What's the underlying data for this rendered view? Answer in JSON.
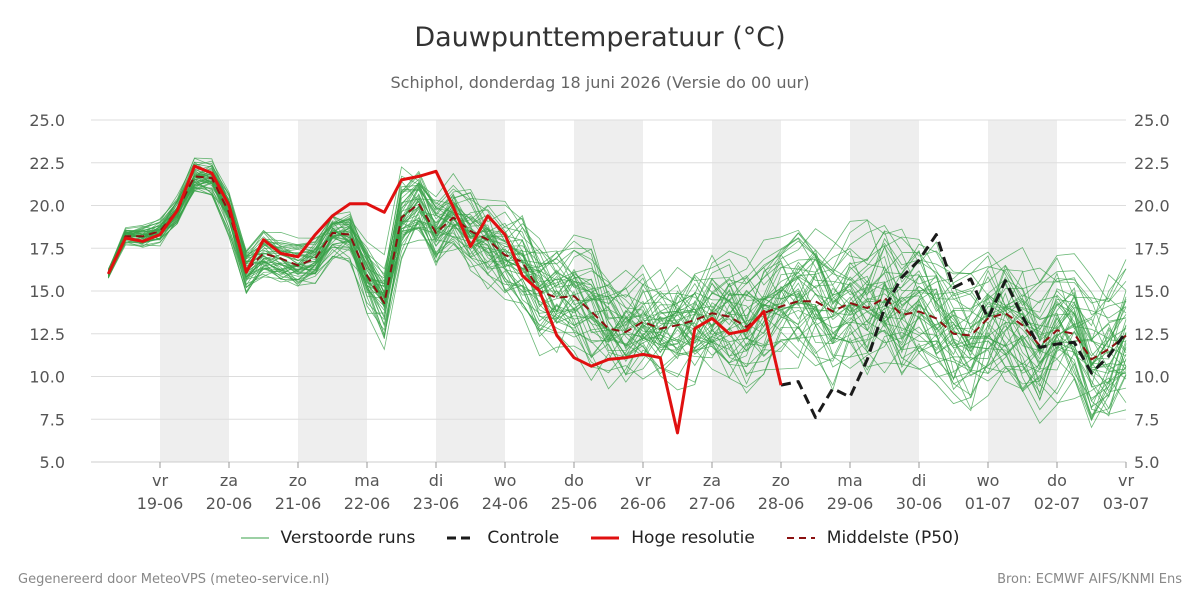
{
  "title": "Dauwpunttemperatuur (°C)",
  "subtitle": "Schiphol, donderdag 18 juni 2026 (Versie do 00 uur)",
  "footer_left": "Gegenereerd door MeteoVPS (meteo-service.nl)",
  "footer_right": "Bron: ECMWF AIFS/KNMI Ens",
  "legend": [
    {
      "label": "Verstoorde runs",
      "style": "thin",
      "color": "#3aa14a"
    },
    {
      "label": "Controle",
      "style": "dashed",
      "color": "#1a1a1a"
    },
    {
      "label": "Hoge resolutie",
      "style": "solid",
      "color": "#e01010"
    },
    {
      "label": "Middelste (P50)",
      "style": "dashed",
      "color": "#8b1010"
    }
  ],
  "chart_data": {
    "type": "line",
    "x_unit": "days after 18-06-2026 00:00",
    "xlim": [
      0,
      15
    ],
    "ylim": [
      5,
      25
    ],
    "y_ticks": [
      "5.0",
      "7.5",
      "10.0",
      "12.5",
      "15.0",
      "17.5",
      "20.0",
      "22.5",
      "25.0"
    ],
    "x_ticks": [
      {
        "day": "vr",
        "date": "19-06",
        "x": 1
      },
      {
        "day": "za",
        "date": "20-06",
        "x": 2
      },
      {
        "day": "zo",
        "date": "21-06",
        "x": 3
      },
      {
        "day": "ma",
        "date": "22-06",
        "x": 4
      },
      {
        "day": "di",
        "date": "23-06",
        "x": 5
      },
      {
        "day": "wo",
        "date": "24-06",
        "x": 6
      },
      {
        "day": "do",
        "date": "25-06",
        "x": 7
      },
      {
        "day": "vr",
        "date": "26-06",
        "x": 8
      },
      {
        "day": "za",
        "date": "27-06",
        "x": 9
      },
      {
        "day": "zo",
        "date": "28-06",
        "x": 10
      },
      {
        "day": "ma",
        "date": "29-06",
        "x": 11
      },
      {
        "day": "di",
        "date": "30-06",
        "x": 12
      },
      {
        "day": "wo",
        "date": "01-07",
        "x": 13
      },
      {
        "day": "do",
        "date": "02-07",
        "x": 14
      },
      {
        "day": "vr",
        "date": "03-07",
        "x": 15
      }
    ],
    "shaded_bands": [
      [
        1,
        2
      ],
      [
        3,
        4
      ],
      [
        5,
        6
      ],
      [
        7,
        8
      ],
      [
        9,
        10
      ],
      [
        11,
        12
      ],
      [
        13,
        14
      ]
    ],
    "colors": {
      "perturbed": "#3aa14a",
      "control": "#1a1a1a",
      "hres": "#e01010",
      "median": "#8b1010",
      "band": "#eeeeee",
      "grid": "#dddddd"
    },
    "series": [
      {
        "name": "Hoge resolutie",
        "points": [
          [
            0.25,
            16.0
          ],
          [
            0.5,
            18.1
          ],
          [
            0.75,
            17.9
          ],
          [
            1.0,
            18.3
          ],
          [
            1.25,
            19.7
          ],
          [
            1.5,
            22.3
          ],
          [
            1.75,
            21.9
          ],
          [
            2.0,
            20.0
          ],
          [
            2.25,
            16.1
          ],
          [
            2.5,
            18.0
          ],
          [
            2.75,
            17.2
          ],
          [
            3.0,
            17.0
          ],
          [
            3.25,
            18.3
          ],
          [
            3.5,
            19.4
          ],
          [
            3.75,
            20.1
          ],
          [
            4.0,
            20.1
          ],
          [
            4.25,
            19.6
          ],
          [
            4.5,
            21.5
          ],
          [
            4.75,
            21.7
          ],
          [
            5.0,
            22.0
          ],
          [
            5.25,
            19.9
          ],
          [
            5.5,
            17.6
          ],
          [
            5.75,
            19.4
          ],
          [
            6.0,
            18.3
          ],
          [
            6.25,
            15.9
          ],
          [
            6.5,
            15.0
          ],
          [
            6.75,
            12.4
          ],
          [
            7.0,
            11.1
          ],
          [
            7.25,
            10.6
          ],
          [
            7.5,
            11.0
          ],
          [
            7.75,
            11.1
          ],
          [
            8.0,
            11.3
          ],
          [
            8.25,
            11.1
          ],
          [
            8.5,
            6.7
          ],
          [
            8.75,
            12.8
          ],
          [
            9.0,
            13.4
          ],
          [
            9.25,
            12.5
          ],
          [
            9.5,
            12.7
          ],
          [
            9.75,
            13.8
          ],
          [
            10.0,
            9.5
          ]
        ]
      },
      {
        "name": "Controle",
        "points": [
          [
            10.0,
            9.5
          ],
          [
            10.25,
            9.7
          ],
          [
            10.5,
            7.6
          ],
          [
            10.75,
            9.3
          ],
          [
            11.0,
            8.8
          ],
          [
            11.25,
            11.0
          ],
          [
            11.5,
            14.0
          ],
          [
            11.75,
            15.8
          ],
          [
            12.0,
            16.8
          ],
          [
            12.25,
            18.3
          ],
          [
            12.5,
            15.2
          ],
          [
            12.75,
            15.7
          ],
          [
            13.0,
            13.4
          ],
          [
            13.25,
            15.6
          ],
          [
            13.5,
            13.5
          ],
          [
            13.75,
            11.7
          ],
          [
            14.0,
            11.9
          ],
          [
            14.25,
            12.0
          ],
          [
            14.5,
            10.2
          ],
          [
            14.75,
            11.2
          ],
          [
            15.0,
            12.6
          ]
        ]
      },
      {
        "name": "Middelste (P50)",
        "points": [
          [
            0.25,
            16.0
          ],
          [
            0.5,
            18.2
          ],
          [
            0.75,
            18.2
          ],
          [
            1.0,
            18.5
          ],
          [
            1.25,
            19.7
          ],
          [
            1.5,
            21.7
          ],
          [
            1.75,
            21.6
          ],
          [
            2.0,
            19.6
          ],
          [
            2.25,
            16.2
          ],
          [
            2.5,
            17.2
          ],
          [
            2.75,
            16.9
          ],
          [
            3.0,
            16.5
          ],
          [
            3.25,
            16.9
          ],
          [
            3.5,
            18.4
          ],
          [
            3.75,
            18.3
          ],
          [
            4.0,
            15.9
          ],
          [
            4.25,
            14.3
          ],
          [
            4.5,
            19.3
          ],
          [
            4.75,
            20.1
          ],
          [
            5.0,
            18.4
          ],
          [
            5.25,
            19.3
          ],
          [
            5.5,
            18.5
          ],
          [
            5.75,
            18.0
          ],
          [
            6.0,
            17.1
          ],
          [
            6.25,
            16.7
          ],
          [
            6.5,
            15.0
          ],
          [
            6.75,
            14.6
          ],
          [
            7.0,
            14.7
          ],
          [
            7.25,
            13.8
          ],
          [
            7.5,
            12.8
          ],
          [
            7.75,
            12.6
          ],
          [
            8.0,
            13.2
          ],
          [
            8.25,
            12.8
          ],
          [
            8.5,
            13.0
          ],
          [
            8.75,
            13.3
          ],
          [
            9.0,
            13.7
          ],
          [
            9.25,
            13.5
          ],
          [
            9.5,
            12.9
          ],
          [
            9.75,
            13.7
          ],
          [
            10.0,
            14.1
          ],
          [
            10.25,
            14.4
          ],
          [
            10.5,
            14.4
          ],
          [
            10.75,
            13.8
          ],
          [
            11.0,
            14.3
          ],
          [
            11.25,
            14.0
          ],
          [
            11.5,
            14.6
          ],
          [
            11.75,
            13.6
          ],
          [
            12.0,
            13.8
          ],
          [
            12.25,
            13.4
          ],
          [
            12.5,
            12.5
          ],
          [
            12.75,
            12.4
          ],
          [
            13.0,
            13.4
          ],
          [
            13.25,
            13.7
          ],
          [
            13.5,
            13.0
          ],
          [
            13.75,
            11.8
          ],
          [
            14.0,
            12.7
          ],
          [
            14.25,
            12.5
          ],
          [
            14.5,
            11.0
          ],
          [
            14.75,
            11.6
          ],
          [
            15.0,
            12.4
          ]
        ]
      }
    ],
    "perturbed_runs": {
      "name": "Verstoorde runs",
      "count": 50,
      "x": [
        0.25,
        0.5,
        0.75,
        1.0,
        1.25,
        1.5,
        1.75,
        2.0,
        2.25,
        2.5,
        2.75,
        3.0,
        3.25,
        3.5,
        3.75,
        4.0,
        4.25,
        4.5,
        4.75,
        5.0,
        5.25,
        5.5,
        5.75,
        6.0,
        6.25,
        6.5,
        6.75,
        7.0,
        7.25,
        7.5,
        7.75,
        8.0,
        8.25,
        8.5,
        8.75,
        9.0,
        9.25,
        9.5,
        9.75,
        10.0,
        10.25,
        10.5,
        10.75,
        11.0,
        11.25,
        11.5,
        11.75,
        12.0,
        12.25,
        12.5,
        12.75,
        13.0,
        13.25,
        13.5,
        13.75,
        14.0,
        14.25,
        14.5,
        14.75,
        15.0
      ],
      "median": [
        16.0,
        18.2,
        18.2,
        18.5,
        19.7,
        21.7,
        21.6,
        19.6,
        16.2,
        17.2,
        16.9,
        16.5,
        16.9,
        18.4,
        18.3,
        15.9,
        14.3,
        19.3,
        20.1,
        18.4,
        19.3,
        18.5,
        18.0,
        17.1,
        16.7,
        15.0,
        14.6,
        14.7,
        13.8,
        12.8,
        12.6,
        13.2,
        12.8,
        13.0,
        13.3,
        13.7,
        13.5,
        12.9,
        13.7,
        14.1,
        14.4,
        14.4,
        13.8,
        14.3,
        14.0,
        14.6,
        13.6,
        13.8,
        13.4,
        12.5,
        12.4,
        13.4,
        13.7,
        13.0,
        11.8,
        12.7,
        12.5,
        11.0,
        11.6,
        12.4
      ],
      "spread": [
        0.4,
        0.6,
        0.7,
        0.8,
        0.9,
        1.0,
        1.1,
        1.3,
        1.3,
        1.3,
        1.2,
        1.2,
        1.3,
        1.4,
        1.6,
        2.0,
        2.3,
        2.2,
        2.0,
        2.2,
        2.4,
        2.6,
        2.8,
        2.9,
        3.0,
        3.0,
        3.1,
        3.1,
        3.2,
        3.2,
        3.2,
        3.3,
        3.3,
        3.3,
        3.4,
        3.4,
        3.5,
        3.5,
        3.6,
        3.6,
        3.7,
        3.7,
        3.8,
        3.8,
        3.8,
        3.9,
        3.9,
        4.0,
        4.0,
        4.0,
        4.0,
        4.1,
        4.1,
        4.1,
        4.1,
        4.2,
        4.2,
        4.2,
        4.2,
        4.2
      ]
    }
  }
}
